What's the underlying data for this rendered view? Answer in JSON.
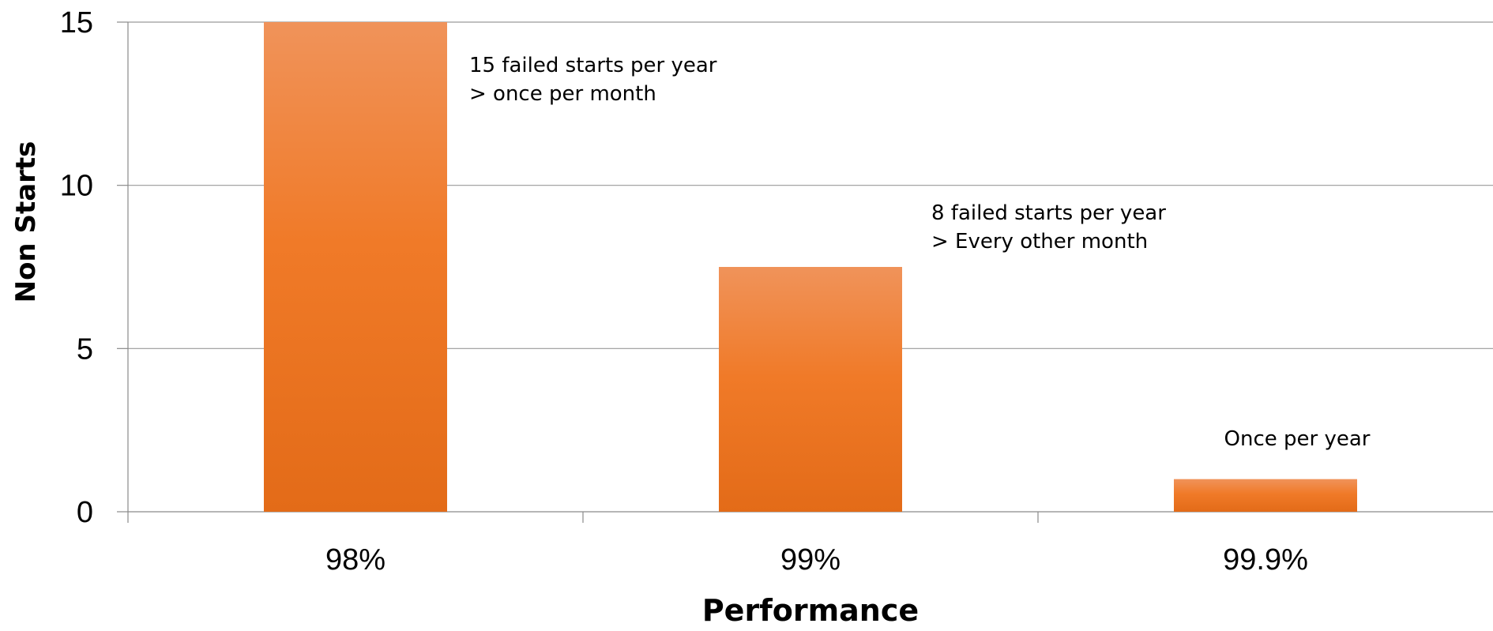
{
  "chart_data": {
    "type": "bar",
    "title": "",
    "xlabel": "Performance",
    "ylabel": "Non Starts",
    "categories": [
      "98%",
      "99%",
      "99.9%"
    ],
    "values": [
      15,
      7.5,
      1
    ],
    "ylim": [
      0,
      15
    ],
    "yticks": [
      0,
      5,
      10,
      15
    ],
    "grid": true,
    "legend": "none",
    "bar_color": "#f07a28",
    "bar_color_light": "#f0935a",
    "bar_color_dark": "#e36b18",
    "annotations": [
      {
        "category": "98%",
        "lines": [
          "15 failed starts per year",
          "> once per month"
        ]
      },
      {
        "category": "99%",
        "lines": [
          "8 failed starts per year",
          "> Every other month"
        ]
      },
      {
        "category": "99.9%",
        "lines": [
          "Once per year"
        ]
      }
    ]
  }
}
